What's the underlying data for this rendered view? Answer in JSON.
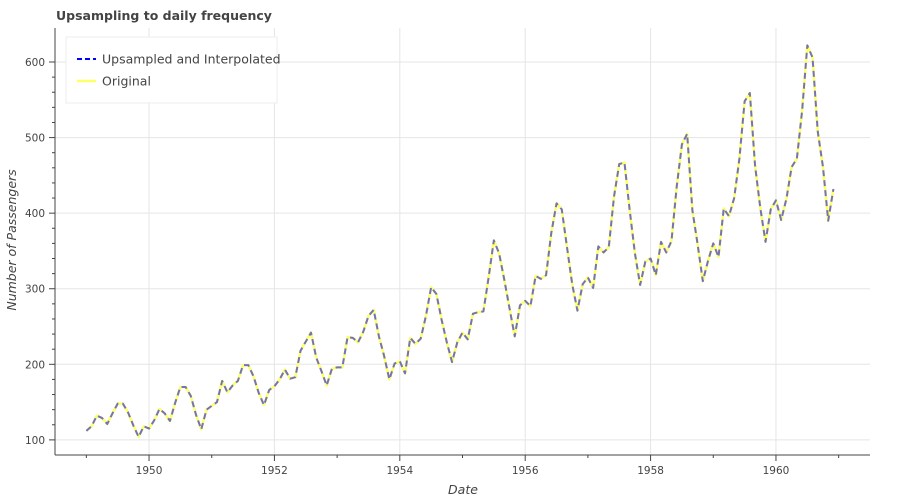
{
  "chart_data": {
    "type": "line",
    "title": "Upsampling to daily frequency",
    "xlabel": "Date",
    "ylabel": "Number of Passengers",
    "xlim": [
      1948.5,
      1961.5
    ],
    "ylim": [
      80,
      645
    ],
    "x_ticks": [
      1950,
      1952,
      1954,
      1956,
      1958,
      1960
    ],
    "y_ticks": [
      100,
      200,
      300,
      400,
      500,
      600
    ],
    "grid": true,
    "legend_position": "top-left",
    "series": [
      {
        "name": "Upsampled and Interpolated",
        "color": "#0000ff",
        "style": "dashed",
        "start_year": 1949,
        "step_months": 1,
        "values": [
          112,
          118,
          132,
          129,
          121,
          135,
          148,
          148,
          136,
          119,
          104,
          118,
          115,
          126,
          141,
          135,
          125,
          149,
          170,
          170,
          158,
          133,
          114,
          140,
          145,
          150,
          178,
          163,
          172,
          178,
          199,
          199,
          184,
          162,
          146,
          166,
          171,
          180,
          193,
          181,
          183,
          218,
          230,
          242,
          209,
          191,
          172,
          194,
          196,
          196,
          236,
          235,
          229,
          243,
          264,
          272,
          237,
          211,
          180,
          201,
          204,
          188,
          235,
          227,
          234,
          264,
          302,
          293,
          259,
          229,
          203,
          229,
          242,
          233,
          267,
          269,
          270,
          315,
          364,
          347,
          312,
          274,
          237,
          278,
          284,
          277,
          317,
          313,
          318,
          374,
          413,
          405,
          355,
          306,
          271,
          306,
          315,
          301,
          356,
          348,
          355,
          422,
          465,
          467,
          404,
          347,
          305,
          336,
          340,
          318,
          362,
          348,
          363,
          435,
          491,
          505,
          404,
          359,
          310,
          337,
          360,
          342,
          406,
          396,
          420,
          472,
          548,
          559,
          463,
          407,
          362,
          405,
          417,
          391,
          419,
          461,
          472,
          535,
          622,
          606,
          508,
          461,
          390,
          432
        ]
      },
      {
        "name": "Original",
        "color": "#ffff66",
        "style": "solid",
        "start_year": 1949,
        "step_months": 1,
        "values": [
          112,
          118,
          132,
          129,
          121,
          135,
          148,
          148,
          136,
          119,
          104,
          118,
          115,
          126,
          141,
          135,
          125,
          149,
          170,
          170,
          158,
          133,
          114,
          140,
          145,
          150,
          178,
          163,
          172,
          178,
          199,
          199,
          184,
          162,
          146,
          166,
          171,
          180,
          193,
          181,
          183,
          218,
          230,
          242,
          209,
          191,
          172,
          194,
          196,
          196,
          236,
          235,
          229,
          243,
          264,
          272,
          237,
          211,
          180,
          201,
          204,
          188,
          235,
          227,
          234,
          264,
          302,
          293,
          259,
          229,
          203,
          229,
          242,
          233,
          267,
          269,
          270,
          315,
          364,
          347,
          312,
          274,
          237,
          278,
          284,
          277,
          317,
          313,
          318,
          374,
          413,
          405,
          355,
          306,
          271,
          306,
          315,
          301,
          356,
          348,
          355,
          422,
          465,
          467,
          404,
          347,
          305,
          336,
          340,
          318,
          362,
          348,
          363,
          435,
          491,
          505,
          404,
          359,
          310,
          337,
          360,
          342,
          406,
          396,
          420,
          472,
          548,
          559,
          463,
          407,
          362,
          405,
          417,
          391,
          419,
          461,
          472,
          535,
          622,
          606,
          508,
          461,
          390,
          432
        ]
      }
    ]
  }
}
